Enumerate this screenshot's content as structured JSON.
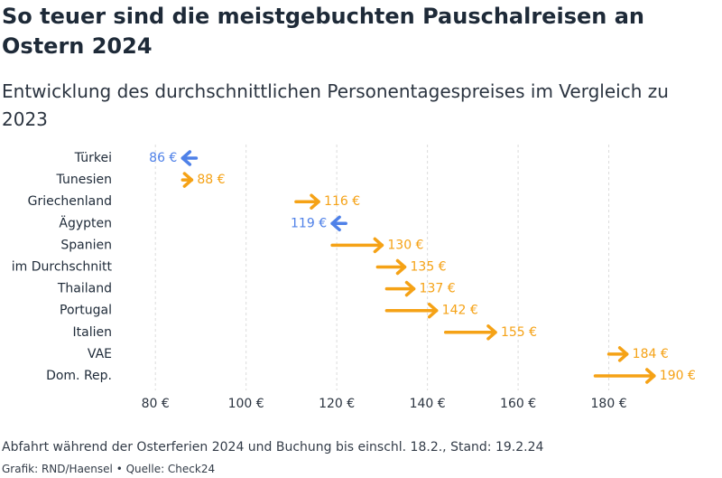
{
  "chart_data": {
    "type": "arrow",
    "title": "So teuer sind die meistgebuchten Pauschalreisen an Ostern 2024",
    "subtitle": "Entwicklung des durchschnittlichen Personentagespreises im Vergleich zu 2023",
    "categories": [
      "Türkei",
      "Tunesien",
      "Griechenland",
      "Ägypten",
      "Spanien",
      "im Durchschnitt",
      "Thailand",
      "Portugal",
      "Italien",
      "VAE",
      "Dom. Rep."
    ],
    "values_2023": [
      89,
      86,
      111,
      122,
      119,
      129,
      131,
      131,
      144,
      180,
      177
    ],
    "values_2024": [
      86,
      88,
      116,
      119,
      130,
      135,
      137,
      142,
      155,
      184,
      190
    ],
    "value_labels": [
      "86 €",
      "88 €",
      "116 €",
      "119 €",
      "130 €",
      "135 €",
      "137 €",
      "142 €",
      "155 €",
      "184 €",
      "190 €"
    ],
    "xlim": [
      72,
      198
    ],
    "xticks": [
      80,
      100,
      120,
      140,
      160,
      180
    ],
    "xtick_labels": [
      "80 €",
      "100 €",
      "120 €",
      "140 €",
      "160 €",
      "180 €"
    ],
    "grid": true,
    "colors": {
      "increase": "#f5a216",
      "decrease": "#4f81e8"
    }
  },
  "footer": {
    "note": "Abfahrt während der Osterferien 2024 und Buchung bis einschl. 18.2., Stand: 19.2.24",
    "credits": "Grafik: RND/Haensel • Quelle: Check24"
  }
}
